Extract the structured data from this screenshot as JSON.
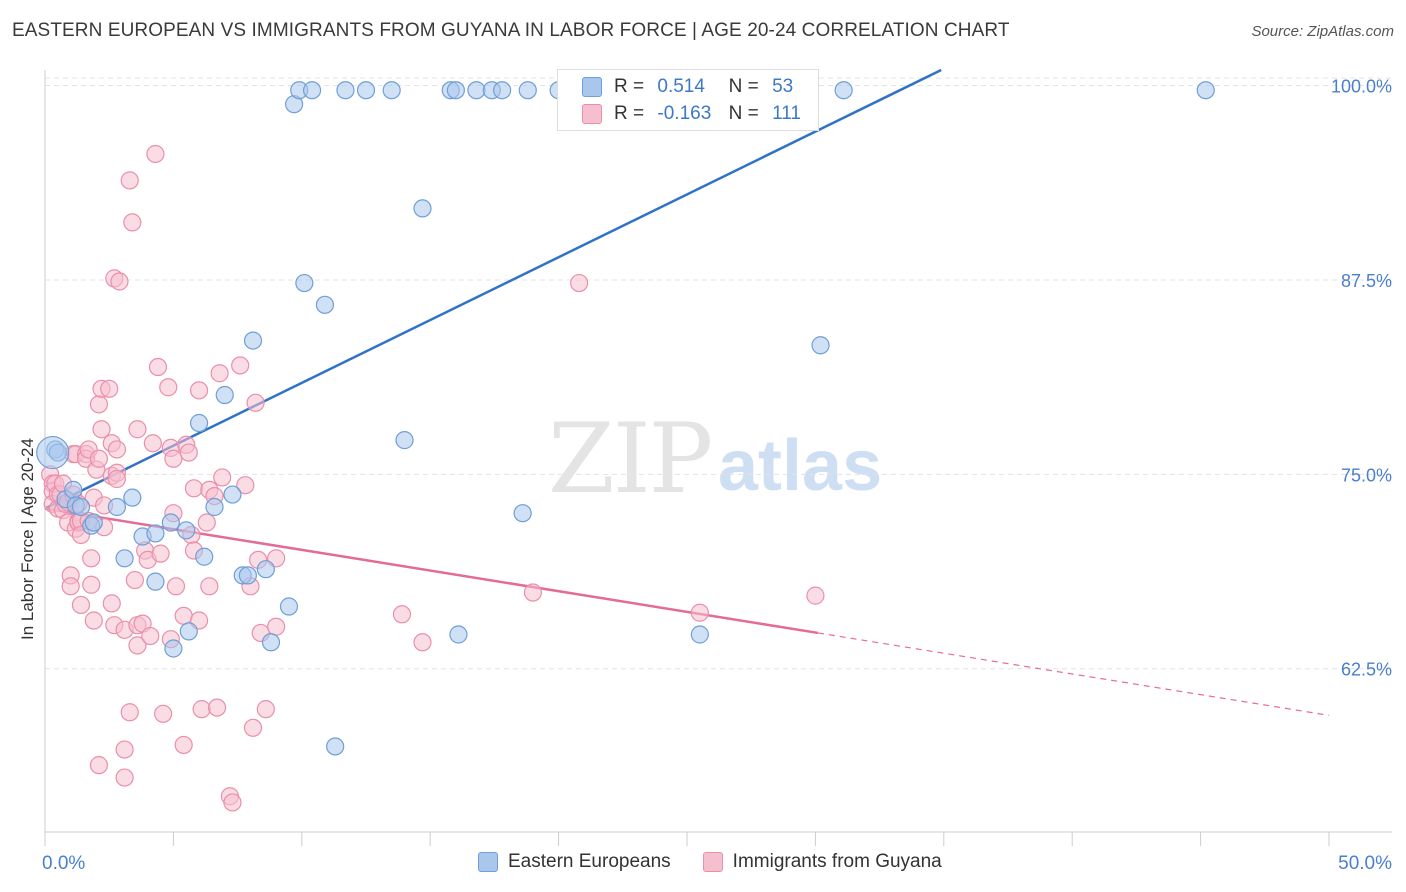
{
  "title": "EASTERN EUROPEAN VS IMMIGRANTS FROM GUYANA IN LABOR FORCE | AGE 20-24 CORRELATION CHART",
  "source": "Source: ZipAtlas.com",
  "watermark": {
    "zip": "ZIP",
    "atlas": "atlas"
  },
  "legend_box": {
    "rows": [
      {
        "r_label": "R =",
        "r_value": "0.514",
        "n_label": "N =",
        "n_value": "53"
      },
      {
        "r_label": "R =",
        "r_value": "-0.163",
        "n_label": "N =",
        "n_value": "111"
      }
    ]
  },
  "legend_bottom": [
    "Eastern Europeans",
    "Immigrants from Guyana"
  ],
  "colors": {
    "blue_fill": "#a9c6ec",
    "blue_stroke": "#6f9fd6",
    "blue_line": "#2f72c8",
    "pink_fill": "#f5bfd0",
    "pink_stroke": "#ea8fab",
    "pink_line": "#e36b95",
    "grid": "#e3e3e3",
    "axis_text": "#4a7fcf"
  },
  "chart_data": {
    "type": "scatter",
    "title": "EASTERN EUROPEAN VS IMMIGRANTS FROM GUYANA IN LABOR FORCE | AGE 20-24 CORRELATION CHART",
    "xlabel": "",
    "ylabel": "In Labor Force | Age 20-24",
    "xlim": [
      0,
      50
    ],
    "ylim": [
      52,
      101
    ],
    "x_tick_labels": [
      "0.0%",
      "50.0%"
    ],
    "y_ticks": [
      62.5,
      75.0,
      87.5,
      100.0
    ],
    "y_tick_labels": [
      "62.5%",
      "75.0%",
      "87.5%",
      "100.0%"
    ],
    "series": [
      {
        "name": "Eastern Europeans",
        "R": 0.514,
        "N": 53,
        "trend": {
          "x": [
            0.0,
            34.9
          ],
          "y": [
            72.8,
            101.0
          ]
        },
        "points": [
          [
            0.4,
            76.6
          ],
          [
            0.5,
            76.4
          ],
          [
            0.8,
            73.4
          ],
          [
            1.1,
            74.0
          ],
          [
            1.2,
            73.0
          ],
          [
            1.4,
            72.9
          ],
          [
            1.8,
            71.7
          ],
          [
            1.9,
            71.9
          ],
          [
            2.8,
            72.9
          ],
          [
            3.1,
            69.6
          ],
          [
            3.4,
            73.5
          ],
          [
            3.8,
            71.0
          ],
          [
            4.3,
            71.2
          ],
          [
            4.3,
            68.1
          ],
          [
            4.9,
            71.9
          ],
          [
            5.0,
            63.8
          ],
          [
            5.5,
            71.4
          ],
          [
            5.6,
            64.9
          ],
          [
            6.0,
            78.3
          ],
          [
            6.2,
            69.7
          ],
          [
            6.6,
            72.9
          ],
          [
            7.0,
            80.1
          ],
          [
            7.3,
            73.7
          ],
          [
            7.7,
            68.5
          ],
          [
            7.9,
            68.5
          ],
          [
            8.1,
            83.6
          ],
          [
            8.6,
            68.9
          ],
          [
            8.8,
            64.2
          ],
          [
            9.5,
            66.5
          ],
          [
            9.7,
            98.8
          ],
          [
            9.9,
            99.7
          ],
          [
            10.1,
            87.3
          ],
          [
            10.4,
            99.7
          ],
          [
            10.9,
            85.9
          ],
          [
            11.3,
            57.5
          ],
          [
            11.7,
            99.7
          ],
          [
            12.5,
            99.7
          ],
          [
            13.5,
            99.7
          ],
          [
            14.0,
            77.2
          ],
          [
            14.7,
            92.1
          ],
          [
            15.8,
            99.7
          ],
          [
            16.0,
            99.7
          ],
          [
            16.1,
            64.7
          ],
          [
            16.8,
            99.7
          ],
          [
            17.4,
            99.7
          ],
          [
            17.8,
            99.7
          ],
          [
            18.6,
            72.5
          ],
          [
            18.8,
            99.7
          ],
          [
            20.0,
            99.7
          ],
          [
            25.5,
            64.7
          ],
          [
            30.2,
            83.3
          ],
          [
            31.1,
            99.7
          ],
          [
            45.2,
            99.7
          ]
        ]
      },
      {
        "name": "Immigrants from Guyana",
        "R": -0.163,
        "N": 111,
        "trend": {
          "x": [
            0.0,
            30.1
          ],
          "y": [
            72.8,
            64.8
          ]
        },
        "trend_dashed": {
          "x": [
            30.1,
            50.0
          ],
          "y": [
            64.8,
            59.5
          ]
        },
        "points": [
          [
            0.2,
            75.0
          ],
          [
            0.3,
            74.4
          ],
          [
            0.3,
            73.9
          ],
          [
            0.3,
            73.1
          ],
          [
            0.4,
            74.4
          ],
          [
            0.5,
            72.8
          ],
          [
            0.5,
            73.7
          ],
          [
            0.6,
            73.7
          ],
          [
            0.7,
            74.4
          ],
          [
            0.7,
            72.7
          ],
          [
            0.8,
            73.1
          ],
          [
            0.9,
            73.2
          ],
          [
            0.9,
            71.9
          ],
          [
            1.0,
            68.5
          ],
          [
            1.0,
            67.8
          ],
          [
            1.1,
            76.3
          ],
          [
            1.1,
            73.7
          ],
          [
            1.2,
            71.5
          ],
          [
            1.2,
            76.3
          ],
          [
            1.3,
            73.1
          ],
          [
            1.3,
            72.0
          ],
          [
            1.3,
            71.9
          ],
          [
            1.4,
            66.6
          ],
          [
            1.4,
            72.0
          ],
          [
            1.4,
            71.1
          ],
          [
            1.6,
            76.3
          ],
          [
            1.6,
            76.0
          ],
          [
            1.7,
            76.6
          ],
          [
            1.7,
            72.0
          ],
          [
            1.8,
            67.9
          ],
          [
            1.8,
            69.6
          ],
          [
            1.9,
            65.6
          ],
          [
            1.9,
            73.5
          ],
          [
            2.0,
            75.3
          ],
          [
            2.1,
            56.3
          ],
          [
            2.1,
            79.5
          ],
          [
            2.1,
            76.0
          ],
          [
            2.2,
            77.9
          ],
          [
            2.2,
            80.5
          ],
          [
            2.3,
            71.6
          ],
          [
            2.3,
            73.0
          ],
          [
            2.5,
            80.5
          ],
          [
            2.6,
            77.0
          ],
          [
            2.6,
            66.7
          ],
          [
            2.6,
            74.9
          ],
          [
            2.7,
            65.3
          ],
          [
            2.7,
            87.6
          ],
          [
            2.8,
            75.1
          ],
          [
            2.8,
            76.6
          ],
          [
            2.8,
            74.7
          ],
          [
            2.9,
            87.4
          ],
          [
            3.1,
            57.3
          ],
          [
            3.1,
            55.5
          ],
          [
            3.1,
            65.0
          ],
          [
            3.3,
            93.9
          ],
          [
            3.3,
            59.7
          ],
          [
            3.4,
            91.2
          ],
          [
            3.5,
            68.2
          ],
          [
            3.6,
            65.3
          ],
          [
            3.6,
            77.9
          ],
          [
            3.6,
            64.0
          ],
          [
            3.8,
            65.4
          ],
          [
            3.9,
            70.1
          ],
          [
            4.0,
            69.5
          ],
          [
            4.1,
            64.6
          ],
          [
            4.2,
            77.0
          ],
          [
            4.3,
            95.6
          ],
          [
            4.4,
            81.9
          ],
          [
            4.5,
            69.9
          ],
          [
            4.6,
            59.6
          ],
          [
            4.8,
            80.6
          ],
          [
            4.9,
            64.4
          ],
          [
            4.9,
            76.7
          ],
          [
            5.0,
            76.0
          ],
          [
            5.0,
            72.5
          ],
          [
            5.1,
            67.8
          ],
          [
            5.4,
            65.9
          ],
          [
            5.4,
            57.6
          ],
          [
            5.5,
            76.9
          ],
          [
            5.6,
            76.4
          ],
          [
            5.7,
            71.1
          ],
          [
            5.8,
            74.1
          ],
          [
            5.8,
            70.1
          ],
          [
            6.0,
            65.6
          ],
          [
            6.0,
            80.4
          ],
          [
            6.1,
            59.9
          ],
          [
            6.3,
            71.9
          ],
          [
            6.4,
            74.0
          ],
          [
            6.4,
            67.8
          ],
          [
            6.6,
            73.6
          ],
          [
            6.7,
            60.0
          ],
          [
            6.8,
            81.5
          ],
          [
            6.9,
            74.8
          ],
          [
            7.2,
            54.3
          ],
          [
            7.3,
            53.9
          ],
          [
            7.6,
            82.0
          ],
          [
            7.8,
            74.3
          ],
          [
            8.0,
            67.8
          ],
          [
            8.1,
            58.7
          ],
          [
            8.2,
            79.6
          ],
          [
            8.3,
            69.5
          ],
          [
            8.4,
            64.8
          ],
          [
            8.6,
            59.9
          ],
          [
            9.0,
            69.6
          ],
          [
            9.0,
            65.2
          ],
          [
            13.9,
            66.0
          ],
          [
            14.7,
            64.2
          ],
          [
            19.0,
            67.4
          ],
          [
            20.8,
            87.3
          ],
          [
            25.5,
            66.1
          ],
          [
            30.0,
            67.2
          ]
        ]
      }
    ]
  }
}
